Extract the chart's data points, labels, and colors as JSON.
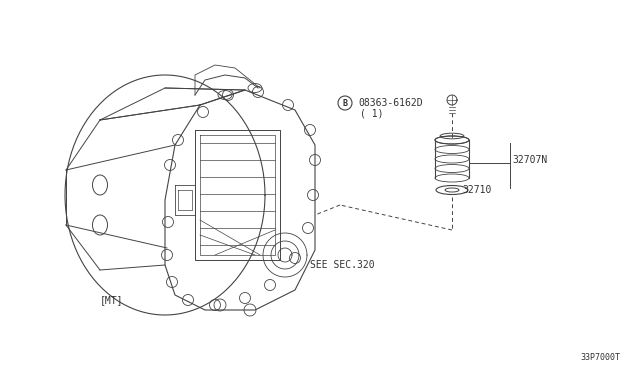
{
  "bg_color": "#ffffff",
  "line_color": "#444444",
  "text_color": "#333333",
  "part_label_bolt": "08363-6162D",
  "part_label_bolt_sub": "( 1)",
  "part_label_b": "B",
  "part_label_pinion": "32707N",
  "part_label_ring": "32710",
  "label_dmt": "[MT]",
  "label_sec": "SEE SEC.320",
  "label_ref": "33P7000T",
  "fig_width": 6.4,
  "fig_height": 3.72,
  "dpi": 100
}
